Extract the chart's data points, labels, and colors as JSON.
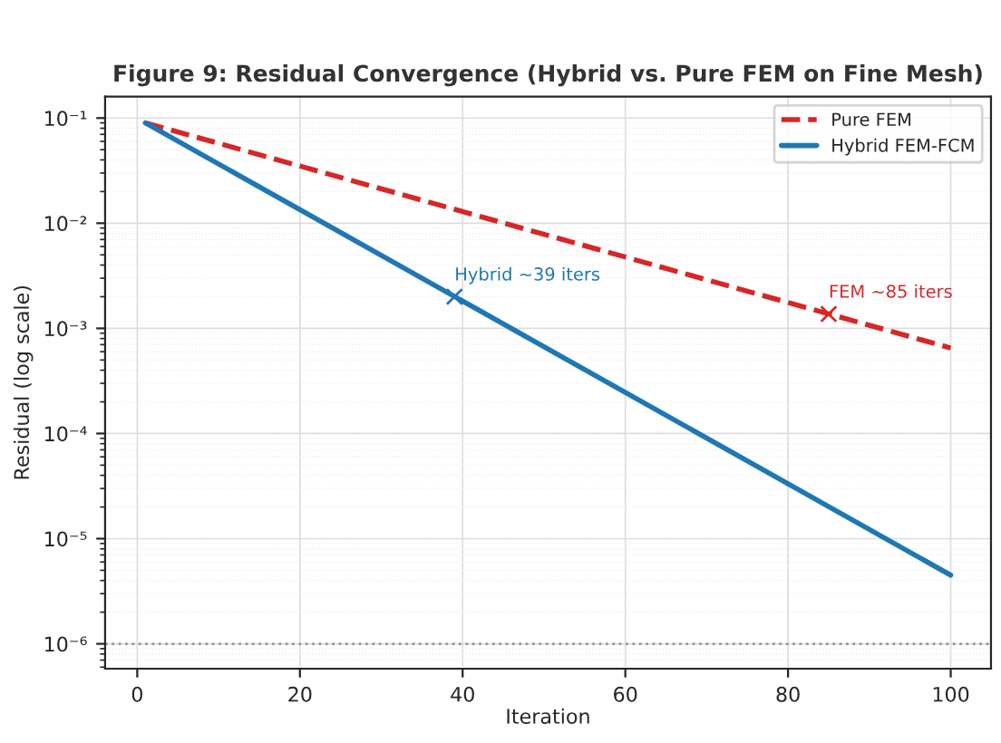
{
  "chart_data": {
    "type": "line",
    "title": "Figure 9: Residual Convergence (Hybrid vs. Pure FEM on Fine Mesh)",
    "xlabel": "Iteration",
    "ylabel": "Residual (log scale)",
    "series": [
      {
        "name": "Pure FEM",
        "color": "#d62728",
        "line_style": "dashed",
        "values": [
          0.09,
          0.00065
        ]
      },
      {
        "name": "Hybrid FEM-FCM",
        "color": "#1f77b4",
        "line_style": "solid",
        "values": [
          0.09,
          4.5e-06
        ]
      }
    ],
    "x": [
      1,
      100
    ],
    "annotations": [
      {
        "text": "FEM ~85 iters",
        "x": 85,
        "y": 0.00137
      },
      {
        "text": "Hybrid ~39 iters",
        "x": 39,
        "y": 0.002
      }
    ],
    "ref_lines": [
      {
        "axis": "y",
        "value": 1e-06,
        "color": "#999999",
        "line_style": "dotted"
      }
    ],
    "log": "y",
    "xlim": [
      -3.95,
      104.95
    ],
    "xticks": [
      0,
      20,
      40,
      60,
      80,
      100
    ],
    "ylim": [
      5.8e-07,
      0.16
    ],
    "yticks": [
      {
        "value": 0.1,
        "label": "10⁻¹"
      },
      {
        "value": 0.01,
        "label": "10⁻²"
      },
      {
        "value": 0.001,
        "label": "10⁻³"
      },
      {
        "value": 0.0001,
        "label": "10⁻⁴"
      },
      {
        "value": 1e-05,
        "label": "10⁻⁵"
      },
      {
        "value": 1e-06,
        "label": "10⁻⁶"
      }
    ],
    "grid": true,
    "legend": "top right",
    "marker": "none"
  }
}
